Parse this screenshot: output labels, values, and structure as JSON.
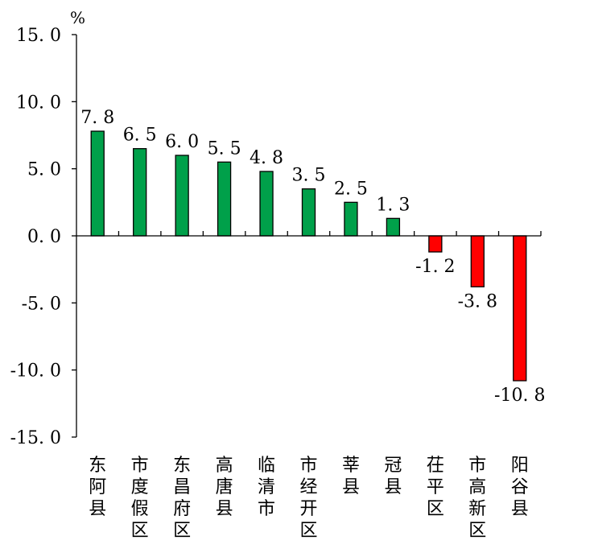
{
  "chart_data": {
    "type": "bar",
    "unit_label": "%",
    "categories": [
      "东阿县",
      "市度假区",
      "东昌府区",
      "高唐县",
      "临清市",
      "市经开区",
      "莘县",
      "冠县",
      "茌平区",
      "市高新区",
      "阳谷县"
    ],
    "values": [
      7.8,
      6.5,
      6.0,
      5.5,
      4.8,
      3.5,
      2.5,
      1.3,
      -1.2,
      -3.8,
      -10.8
    ],
    "value_labels": [
      "7. 8",
      "6. 5",
      "6. 0",
      "5. 5",
      "4. 8",
      "3. 5",
      "2. 5",
      "1. 3",
      "-1. 2",
      "-3. 8",
      "-10. 8"
    ],
    "y_ticks": [
      15,
      10,
      5,
      0,
      -5,
      -10,
      -15
    ],
    "y_tick_labels": [
      "15. 0",
      "10. 0",
      "5. 0",
      "0. 0",
      "-5. 0",
      "-10. 0",
      "-15. 0"
    ],
    "ylim": [
      -15,
      15
    ],
    "colors": {
      "positive": "#00A04A",
      "negative": "#FF0000",
      "axis": "#000000"
    },
    "grid": false,
    "legend": "none"
  }
}
